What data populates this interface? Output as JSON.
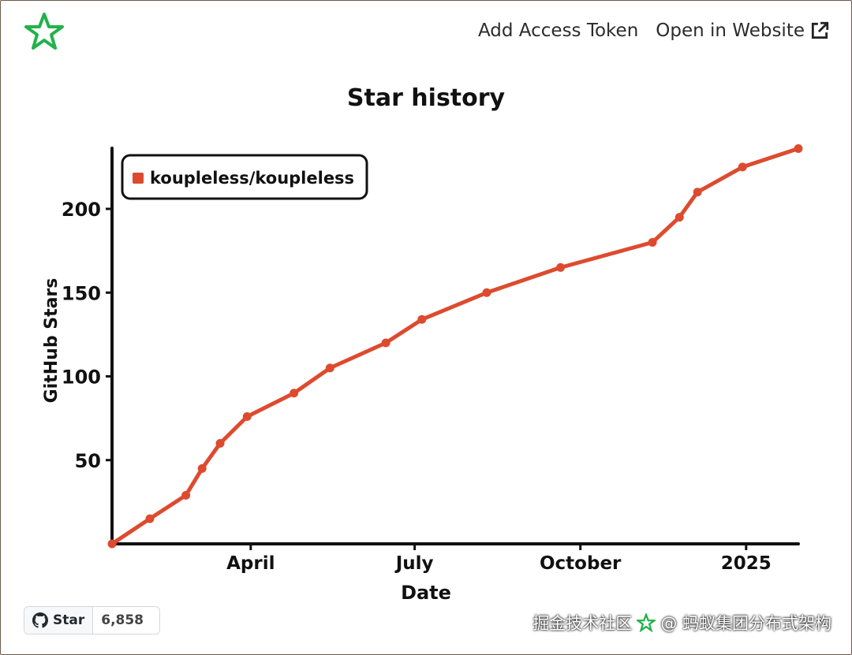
{
  "nav": {
    "add_token": "Add Access Token",
    "open_website": "Open in Website"
  },
  "badge": {
    "label": "Star",
    "count": "6,858"
  },
  "watermark": {
    "left": "掘金技术社区",
    "right": "@ 蚂蚁集团分布式架构"
  },
  "colors": {
    "series": "#dd4b2f",
    "logo": "#22b24c",
    "axis": "#111111"
  },
  "chart_data": {
    "type": "line",
    "title": "Star history",
    "xlabel": "Date",
    "ylabel": "GitHub Stars",
    "x_ticks": [
      "April",
      "July",
      "October",
      "2025"
    ],
    "y_ticks": [
      50,
      100,
      150,
      200
    ],
    "ylim": [
      0,
      240
    ],
    "legend_position": "top-left",
    "series": [
      {
        "name": "koupleless/koupleless",
        "points": [
          {
            "x": "2024-01-15",
            "y": 0
          },
          {
            "x": "2024-02-05",
            "y": 15
          },
          {
            "x": "2024-02-25",
            "y": 29
          },
          {
            "x": "2024-03-05",
            "y": 45
          },
          {
            "x": "2024-03-15",
            "y": 60
          },
          {
            "x": "2024-03-30",
            "y": 76
          },
          {
            "x": "2024-04-25",
            "y": 90
          },
          {
            "x": "2024-05-15",
            "y": 105
          },
          {
            "x": "2024-06-15",
            "y": 120
          },
          {
            "x": "2024-07-05",
            "y": 134
          },
          {
            "x": "2024-08-10",
            "y": 150
          },
          {
            "x": "2024-09-20",
            "y": 165
          },
          {
            "x": "2024-11-10",
            "y": 180
          },
          {
            "x": "2024-11-25",
            "y": 195
          },
          {
            "x": "2024-12-05",
            "y": 210
          },
          {
            "x": "2024-12-30",
            "y": 225
          },
          {
            "x": "2025-01-30",
            "y": 236
          }
        ]
      }
    ]
  }
}
